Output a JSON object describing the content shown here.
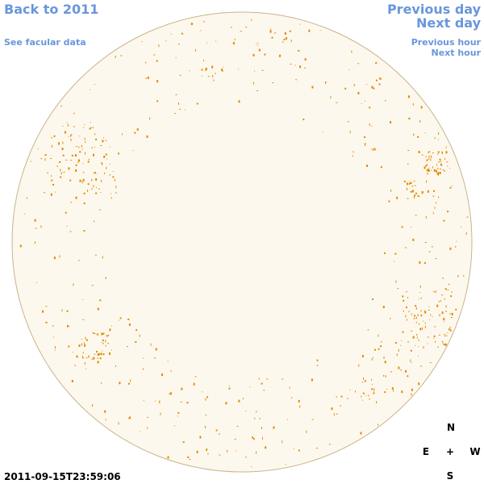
{
  "nav": {
    "back_year": "Back to 2011",
    "facular_data": "See facular data",
    "previous_day": "Previous day",
    "next_day": "Next day",
    "previous_hour": "Previous hour",
    "next_hour": "Next hour"
  },
  "timestamp": "2011-09-15T23:59:06",
  "compass": {
    "north": "N",
    "east": "E",
    "center": "+",
    "west": "W",
    "south": "S"
  }
}
